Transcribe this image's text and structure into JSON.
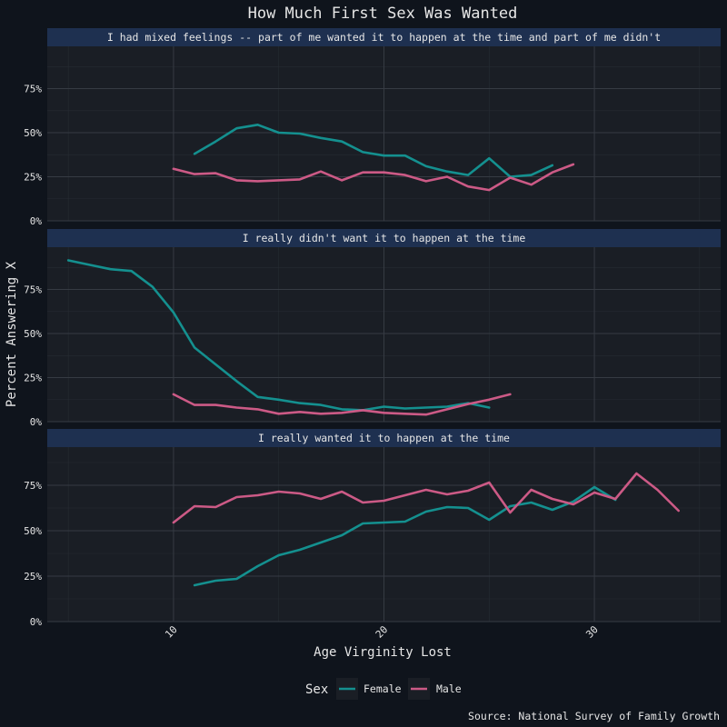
{
  "chart_data": {
    "type": "line",
    "title": "How Much First Sex Was Wanted",
    "xlabel": "Age Virginity Lost",
    "ylabel": "Percent Answering X",
    "caption": "Source: National Survey of Family Growth",
    "xlim": [
      4,
      36
    ],
    "ylim": [
      0,
      1
    ],
    "x_ticks": [
      10,
      20,
      30
    ],
    "y_ticks": [
      0,
      0.25,
      0.5,
      0.75
    ],
    "y_tick_labels": [
      "0%",
      "25%",
      "50%",
      "75%"
    ],
    "legend": {
      "title": "Sex",
      "position": "bottom",
      "entries": [
        {
          "name": "Female",
          "color": "#14908f"
        },
        {
          "name": "Male",
          "color": "#cc5a86"
        }
      ]
    },
    "grid": true,
    "panels": [
      {
        "label": "I had mixed feelings -- part of me wanted it to happen at the time and part of me didn't",
        "series": [
          {
            "name": "Female",
            "x": [
              11,
              12,
              13,
              14,
              15,
              16,
              17,
              18,
              19,
              20,
              21,
              22,
              23,
              24,
              25,
              26,
              27,
              28
            ],
            "y": [
              0.38,
              0.45,
              0.525,
              0.545,
              0.5,
              0.495,
              0.47,
              0.45,
              0.39,
              0.37,
              0.37,
              0.31,
              0.28,
              0.26,
              0.355,
              0.25,
              0.26,
              0.315
            ]
          },
          {
            "name": "Male",
            "x": [
              10,
              11,
              12,
              13,
              14,
              15,
              16,
              17,
              18,
              19,
              20,
              21,
              22,
              23,
              24,
              25,
              26,
              27,
              28,
              29
            ],
            "y": [
              0.295,
              0.265,
              0.27,
              0.23,
              0.225,
              0.23,
              0.235,
              0.28,
              0.23,
              0.275,
              0.275,
              0.26,
              0.225,
              0.25,
              0.195,
              0.175,
              0.245,
              0.205,
              0.275,
              0.32
            ]
          }
        ]
      },
      {
        "label": "I really didn't want it to happen at the time",
        "series": [
          {
            "name": "Female",
            "x": [
              5,
              6,
              7,
              8,
              9,
              10,
              11,
              12,
              13,
              14,
              15,
              16,
              17,
              18,
              19,
              20,
              21,
              22,
              23,
              24,
              25
            ],
            "y": [
              0.915,
              0.89,
              0.865,
              0.855,
              0.765,
              0.62,
              0.42,
              0.325,
              0.23,
              0.14,
              0.125,
              0.105,
              0.095,
              0.07,
              0.065,
              0.085,
              0.075,
              0.08,
              0.085,
              0.105,
              0.08
            ]
          },
          {
            "name": "Male",
            "x": [
              10,
              11,
              12,
              13,
              14,
              15,
              16,
              17,
              18,
              19,
              20,
              21,
              22,
              23,
              24,
              25,
              26
            ],
            "y": [
              0.155,
              0.095,
              0.095,
              0.08,
              0.07,
              0.045,
              0.055,
              0.045,
              0.05,
              0.065,
              0.05,
              0.045,
              0.04,
              0.07,
              0.1,
              0.125,
              0.155
            ]
          }
        ]
      },
      {
        "label": "I really wanted it to happen at the time",
        "series": [
          {
            "name": "Female",
            "x": [
              11,
              12,
              13,
              14,
              15,
              16,
              17,
              18,
              19,
              20,
              21,
              22,
              23,
              24,
              25,
              26,
              27,
              28,
              29,
              30,
              31
            ],
            "y": [
              0.2,
              0.225,
              0.235,
              0.305,
              0.365,
              0.395,
              0.435,
              0.475,
              0.54,
              0.545,
              0.55,
              0.605,
              0.63,
              0.625,
              0.56,
              0.635,
              0.655,
              0.615,
              0.66,
              0.74,
              0.67
            ]
          },
          {
            "name": "Male",
            "x": [
              10,
              11,
              12,
              13,
              14,
              15,
              16,
              17,
              18,
              19,
              20,
              21,
              22,
              23,
              24,
              25,
              26,
              27,
              28,
              29,
              30,
              31,
              32,
              33,
              34
            ],
            "y": [
              0.545,
              0.635,
              0.63,
              0.685,
              0.695,
              0.715,
              0.705,
              0.675,
              0.715,
              0.655,
              0.665,
              0.695,
              0.725,
              0.7,
              0.72,
              0.765,
              0.6,
              0.725,
              0.675,
              0.645,
              0.71,
              0.675,
              0.815,
              0.725,
              0.61
            ]
          }
        ]
      }
    ]
  }
}
